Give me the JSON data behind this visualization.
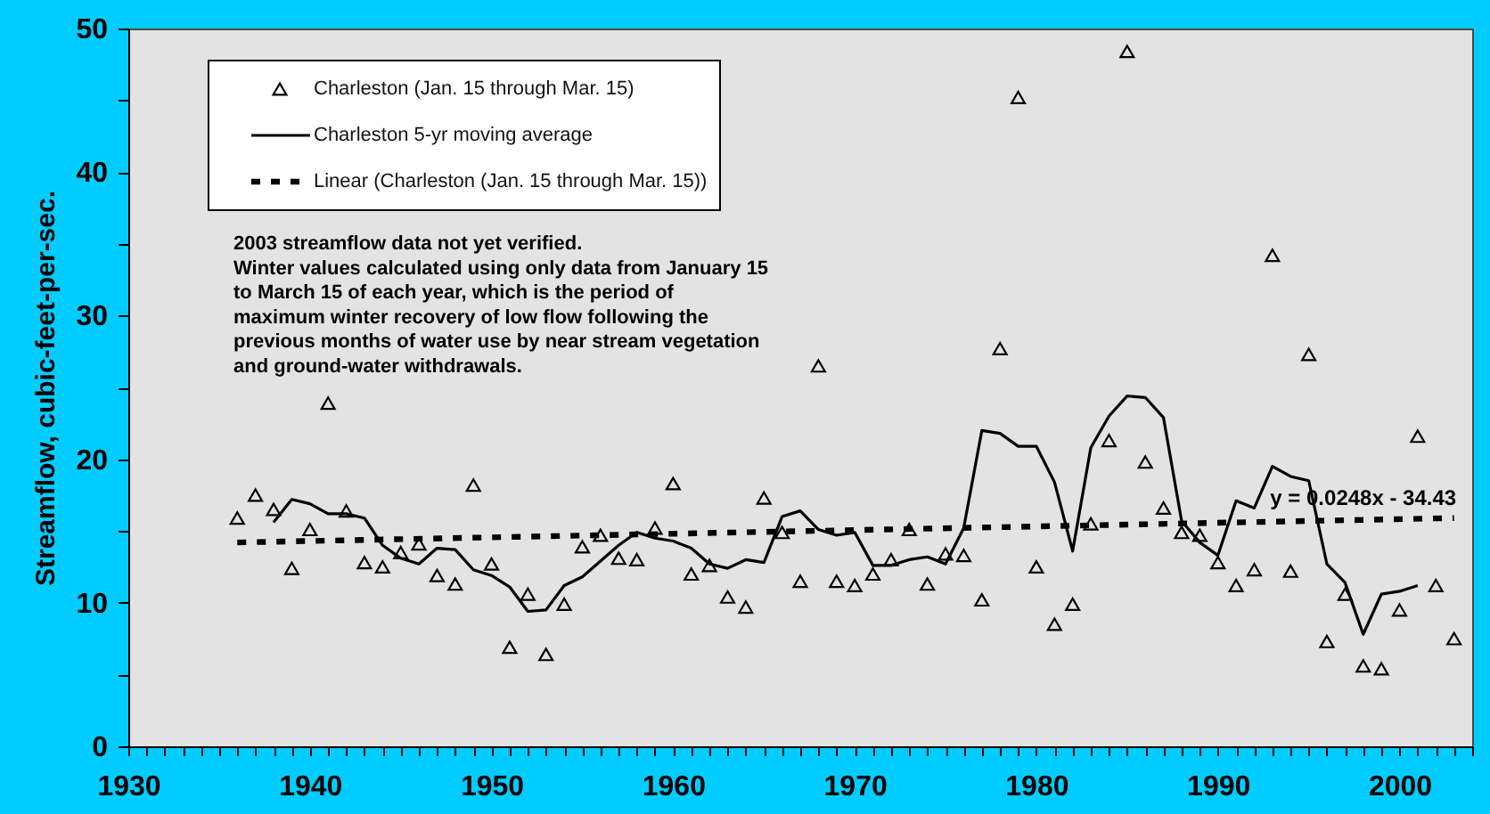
{
  "chart_data": {
    "type": "scatter",
    "ylabel": "Streamflow, cubic-feet-per-sec.",
    "annotations": [
      "2003 streamflow data not yet verified.\nWinter values calculated using only data from January 15\nto March 15 of each year, which is the period of\nmaximum winter recovery of low flow following the\nprevious months of water use by near stream vegetation\nand ground-water withdrawals.",
      {
        "text": "y = 0.0248x - 34.43",
        "x": 1998,
        "y": 15.8
      }
    ],
    "series": [
      {
        "name": "Charleston (Jan. 15 through Mar. 15)",
        "marker": "triangle",
        "color": "#000000",
        "x": [
          1936,
          1937,
          1938,
          1939,
          1940,
          1941,
          1942,
          1943,
          1944,
          1945,
          1946,
          1947,
          1948,
          1949,
          1950,
          1951,
          1952,
          1953,
          1954,
          1955,
          1956,
          1957,
          1958,
          1959,
          1960,
          1961,
          1962,
          1963,
          1964,
          1965,
          1966,
          1967,
          1968,
          1969,
          1970,
          1971,
          1972,
          1973,
          1974,
          1975,
          1976,
          1977,
          1978,
          1979,
          1980,
          1981,
          1982,
          1983,
          1984,
          1985,
          1986,
          1987,
          1988,
          1989,
          1990,
          1991,
          1992,
          1993,
          1994,
          1995,
          1996,
          1997,
          1998,
          1999,
          2000,
          2001,
          2002,
          2003
        ],
        "values": [
          15.9,
          17.5,
          16.5,
          12.4,
          15.1,
          23.9,
          16.4,
          12.8,
          12.5,
          13.5,
          14.1,
          11.9,
          11.3,
          18.2,
          12.7,
          6.9,
          10.6,
          6.4,
          9.9,
          13.9,
          14.7,
          13.1,
          13.0,
          15.2,
          18.3,
          12.0,
          12.6,
          10.4,
          9.7,
          17.3,
          14.9,
          11.5,
          26.5,
          11.5,
          11.2,
          12.0,
          13.0,
          15.1,
          11.3,
          13.4,
          13.3,
          10.2,
          27.7,
          45.2,
          12.5,
          8.5,
          9.9,
          15.5,
          21.3,
          48.4,
          19.8,
          16.6,
          14.9,
          14.7,
          12.8,
          11.2,
          12.3,
          34.2,
          12.2,
          27.3,
          7.3,
          10.6,
          5.6,
          5.4,
          9.5,
          21.6,
          11.2,
          7.5
        ]
      },
      {
        "name": "Charleston 5-yr moving average",
        "type": "line",
        "line_style": "solid",
        "marker": "none",
        "color": "#000000",
        "x": [
          1938,
          1939,
          1940,
          1941,
          1942,
          1943,
          1944,
          1945,
          1946,
          1947,
          1948,
          1949,
          1950,
          1951,
          1952,
          1953,
          1954,
          1955,
          1956,
          1957,
          1958,
          1959,
          1960,
          1961,
          1962,
          1963,
          1964,
          1965,
          1966,
          1967,
          1968,
          1969,
          1970,
          1971,
          1972,
          1973,
          1974,
          1975,
          1976,
          1977,
          1978,
          1979,
          1980,
          1981,
          1982,
          1983,
          1984,
          1985,
          1986,
          1987,
          1988,
          1989,
          1990,
          1991,
          1992,
          1993,
          1994,
          1995,
          1996,
          1997,
          1998,
          1999,
          2000,
          2001
        ],
        "values": [
          15.6,
          17.2,
          16.9,
          16.2,
          16.2,
          15.9,
          14.0,
          13.1,
          12.7,
          13.8,
          13.7,
          12.3,
          11.9,
          11.1,
          9.4,
          9.5,
          11.2,
          11.8,
          12.9,
          14.0,
          14.9,
          14.5,
          14.3,
          13.8,
          12.7,
          12.4,
          13.0,
          12.8,
          16.0,
          16.4,
          15.1,
          14.7,
          14.9,
          12.6,
          12.6,
          13.0,
          13.2,
          12.7,
          15.2,
          22.0,
          21.8,
          20.9,
          20.9,
          18.4,
          13.6,
          20.8,
          23.0,
          24.4,
          24.3,
          22.9,
          15.7,
          14.2,
          13.3,
          17.1,
          16.6,
          19.5,
          18.8,
          18.5,
          12.7,
          11.4,
          7.8,
          10.6,
          10.8,
          11.2
        ]
      },
      {
        "name": "Linear (Charleston (Jan. 15 through Mar. 15))",
        "type": "line",
        "line_style": "dashed",
        "marker": "none",
        "color": "#000000",
        "x": [
          1936,
          2003
        ],
        "values": [
          14.2,
          15.9
        ]
      }
    ],
    "xlim": [
      1930,
      2004
    ],
    "xticks": [
      1930,
      {
        "value": 1931,
        "label": null
      },
      {
        "value": 1932,
        "label": null
      },
      {
        "value": 1933,
        "label": null
      },
      {
        "value": 1934,
        "label": null
      },
      {
        "value": 1935,
        "label": null
      },
      {
        "value": 1936,
        "label": null
      },
      {
        "value": 1937,
        "label": null
      },
      {
        "value": 1938,
        "label": null
      },
      {
        "value": 1939,
        "label": null
      },
      1940,
      {
        "value": 1941,
        "label": null
      },
      {
        "value": 1942,
        "label": null
      },
      {
        "value": 1943,
        "label": null
      },
      {
        "value": 1944,
        "label": null
      },
      {
        "value": 1945,
        "label": null
      },
      {
        "value": 1946,
        "label": null
      },
      {
        "value": 1947,
        "label": null
      },
      {
        "value": 1948,
        "label": null
      },
      {
        "value": 1949,
        "label": null
      },
      1950,
      {
        "value": 1951,
        "label": null
      },
      {
        "value": 1952,
        "label": null
      },
      {
        "value": 1953,
        "label": null
      },
      {
        "value": 1954,
        "label": null
      },
      {
        "value": 1955,
        "label": null
      },
      {
        "value": 1956,
        "label": null
      },
      {
        "value": 1957,
        "label": null
      },
      {
        "value": 1958,
        "label": null
      },
      {
        "value": 1959,
        "label": null
      },
      1960,
      {
        "value": 1961,
        "label": null
      },
      {
        "value": 1962,
        "label": null
      },
      {
        "value": 1963,
        "label": null
      },
      {
        "value": 1964,
        "label": null
      },
      {
        "value": 1965,
        "label": null
      },
      {
        "value": 1966,
        "label": null
      },
      {
        "value": 1967,
        "label": null
      },
      {
        "value": 1968,
        "label": null
      },
      {
        "value": 1969,
        "label": null
      },
      1970,
      {
        "value": 1971,
        "label": null
      },
      {
        "value": 1972,
        "label": null
      },
      {
        "value": 1973,
        "label": null
      },
      {
        "value": 1974,
        "label": null
      },
      {
        "value": 1975,
        "label": null
      },
      {
        "value": 1976,
        "label": null
      },
      {
        "value": 1977,
        "label": null
      },
      {
        "value": 1978,
        "label": null
      },
      {
        "value": 1979,
        "label": null
      },
      1980,
      {
        "value": 1981,
        "label": null
      },
      {
        "value": 1982,
        "label": null
      },
      {
        "value": 1983,
        "label": null
      },
      {
        "value": 1984,
        "label": null
      },
      {
        "value": 1985,
        "label": null
      },
      {
        "value": 1986,
        "label": null
      },
      {
        "value": 1987,
        "label": null
      },
      {
        "value": 1988,
        "label": null
      },
      {
        "value": 1989,
        "label": null
      },
      1990,
      {
        "value": 1991,
        "label": null
      },
      {
        "value": 1992,
        "label": null
      },
      {
        "value": 1993,
        "label": null
      },
      {
        "value": 1994,
        "label": null
      },
      {
        "value": 1995,
        "label": null
      },
      {
        "value": 1996,
        "label": null
      },
      {
        "value": 1997,
        "label": null
      },
      {
        "value": 1998,
        "label": null
      },
      {
        "value": 1999,
        "label": null
      },
      2000,
      {
        "value": 2001,
        "label": null
      },
      {
        "value": 2002,
        "label": null
      },
      {
        "value": 2003,
        "label": null
      },
      {
        "value": 2004,
        "label": null
      }
    ],
    "ylim": [
      0,
      50
    ],
    "yticks": [
      0,
      {
        "value": 5,
        "label": null
      },
      10,
      {
        "value": 15,
        "label": null
      },
      20,
      {
        "value": 25,
        "label": null
      },
      30,
      {
        "value": 35,
        "label": null
      },
      40,
      {
        "value": 45,
        "label": null
      },
      50
    ],
    "legend": "top left"
  }
}
